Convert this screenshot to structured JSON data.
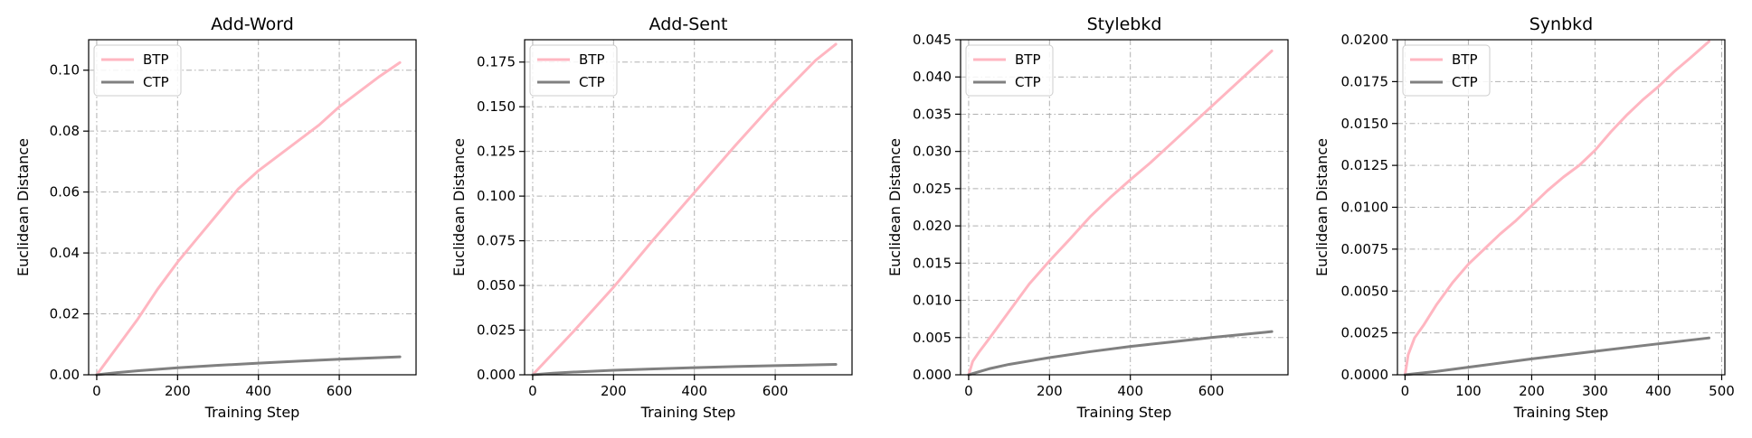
{
  "chart_data": [
    {
      "type": "line",
      "title": "Add-Word",
      "xlabel": "Training Step",
      "ylabel": "Euclidean Distance",
      "xlim": [
        -20,
        790
      ],
      "ylim": [
        0,
        0.11
      ],
      "xticks": [
        0,
        200,
        400,
        600
      ],
      "xtick_labels": [
        "0",
        "200",
        "400",
        "600"
      ],
      "yticks": [
        0,
        0.02,
        0.04,
        0.06,
        0.08,
        0.1
      ],
      "ytick_labels": [
        "0.00",
        "0.02",
        "0.04",
        "0.06",
        "0.08",
        "0.10"
      ],
      "grid": true,
      "legend": "top-left",
      "series": [
        {
          "name": "BTP",
          "color": "#ffb6c1",
          "x": [
            0,
            25,
            50,
            100,
            150,
            200,
            250,
            300,
            350,
            400,
            450,
            500,
            550,
            600,
            650,
            700,
            750
          ],
          "y": [
            0,
            0.0045,
            0.009,
            0.018,
            0.028,
            0.037,
            0.045,
            0.053,
            0.061,
            0.067,
            0.072,
            0.077,
            0.082,
            0.088,
            0.093,
            0.098,
            0.1025
          ]
        },
        {
          "name": "CTP",
          "color": "#808080",
          "x": [
            0,
            50,
            100,
            200,
            300,
            400,
            500,
            600,
            750
          ],
          "y": [
            0,
            0.0007,
            0.0013,
            0.0023,
            0.0031,
            0.0038,
            0.0045,
            0.0051,
            0.0059
          ]
        }
      ]
    },
    {
      "type": "line",
      "title": "Add-Sent",
      "xlabel": "Training Step",
      "ylabel": "Euclidean Distance",
      "xlim": [
        -20,
        790
      ],
      "ylim": [
        0,
        0.1875
      ],
      "xticks": [
        0,
        200,
        400,
        600
      ],
      "xtick_labels": [
        "0",
        "200",
        "400",
        "600"
      ],
      "yticks": [
        0,
        0.025,
        0.05,
        0.075,
        0.1,
        0.125,
        0.15,
        0.175
      ],
      "ytick_labels": [
        "0.000",
        "0.025",
        "0.050",
        "0.075",
        "0.100",
        "0.125",
        "0.150",
        "0.175"
      ],
      "grid": true,
      "legend": "top-left",
      "series": [
        {
          "name": "BTP",
          "color": "#ffb6c1",
          "x": [
            0,
            50,
            100,
            200,
            300,
            400,
            500,
            600,
            700,
            750
          ],
          "y": [
            0,
            0.012,
            0.024,
            0.049,
            0.076,
            0.102,
            0.128,
            0.153,
            0.176,
            0.185
          ]
        },
        {
          "name": "CTP",
          "color": "#808080",
          "x": [
            0,
            50,
            100,
            200,
            300,
            400,
            500,
            600,
            750
          ],
          "y": [
            0,
            0.0009,
            0.0015,
            0.0025,
            0.0033,
            0.004,
            0.0046,
            0.0051,
            0.0058
          ]
        }
      ]
    },
    {
      "type": "line",
      "title": "Stylebkd",
      "xlabel": "Training Step",
      "ylabel": "Euclidean Distance",
      "xlim": [
        -20,
        790
      ],
      "ylim": [
        0,
        0.045
      ],
      "xticks": [
        0,
        200,
        400,
        600
      ],
      "xtick_labels": [
        "0",
        "200",
        "400",
        "600"
      ],
      "yticks": [
        0,
        0.005,
        0.01,
        0.015,
        0.02,
        0.025,
        0.03,
        0.035,
        0.04,
        0.045
      ],
      "ytick_labels": [
        "0.000",
        "0.005",
        "0.010",
        "0.015",
        "0.020",
        "0.025",
        "0.030",
        "0.035",
        "0.040",
        "0.045"
      ],
      "grid": true,
      "legend": "top-left",
      "series": [
        {
          "name": "BTP",
          "color": "#ffb6c1",
          "x": [
            0,
            10,
            25,
            50,
            100,
            150,
            200,
            250,
            300,
            350,
            400,
            450,
            500,
            550,
            600,
            650,
            700,
            750
          ],
          "y": [
            0,
            0.0018,
            0.003,
            0.0048,
            0.0085,
            0.0122,
            0.0153,
            0.0182,
            0.0212,
            0.0238,
            0.0262,
            0.0285,
            0.031,
            0.0335,
            0.036,
            0.0385,
            0.041,
            0.0435
          ]
        },
        {
          "name": "CTP",
          "color": "#808080",
          "x": [
            0,
            50,
            100,
            200,
            300,
            400,
            500,
            600,
            750
          ],
          "y": [
            0,
            0.0008,
            0.0014,
            0.0023,
            0.0031,
            0.0038,
            0.0044,
            0.005,
            0.0058
          ]
        }
      ]
    },
    {
      "type": "line",
      "title": "Synbkd",
      "xlabel": "Training Step",
      "ylabel": "Euclidean Distance",
      "xlim": [
        -12,
        505
      ],
      "ylim": [
        0,
        0.02
      ],
      "xticks": [
        0,
        100,
        200,
        300,
        400,
        500
      ],
      "xtick_labels": [
        "0",
        "100",
        "200",
        "300",
        "400",
        "500"
      ],
      "yticks": [
        0,
        0.0025,
        0.005,
        0.0075,
        0.01,
        0.0125,
        0.015,
        0.0175,
        0.02
      ],
      "ytick_labels": [
        "0.0000",
        "0.0025",
        "0.0050",
        "0.0075",
        "0.0100",
        "0.0125",
        "0.0150",
        "0.0175",
        "0.0200"
      ],
      "grid": true,
      "legend": "top-left",
      "series": [
        {
          "name": "BTP",
          "color": "#ffb6c1",
          "x": [
            0,
            5,
            15,
            30,
            50,
            75,
            100,
            125,
            150,
            175,
            200,
            225,
            250,
            275,
            300,
            325,
            350,
            375,
            400,
            425,
            450,
            480
          ],
          "y": [
            0,
            0.0012,
            0.0022,
            0.003,
            0.0042,
            0.0055,
            0.0066,
            0.0075,
            0.0084,
            0.0092,
            0.0101,
            0.011,
            0.0118,
            0.0125,
            0.0134,
            0.0145,
            0.0155,
            0.0164,
            0.0172,
            0.0181,
            0.0189,
            0.0199
          ]
        },
        {
          "name": "CTP",
          "color": "#808080",
          "x": [
            0,
            25,
            50,
            100,
            200,
            300,
            400,
            480
          ],
          "y": [
            0,
            0.0001,
            0.0002,
            0.00045,
            0.00095,
            0.0014,
            0.00185,
            0.0022
          ]
        }
      ]
    }
  ]
}
